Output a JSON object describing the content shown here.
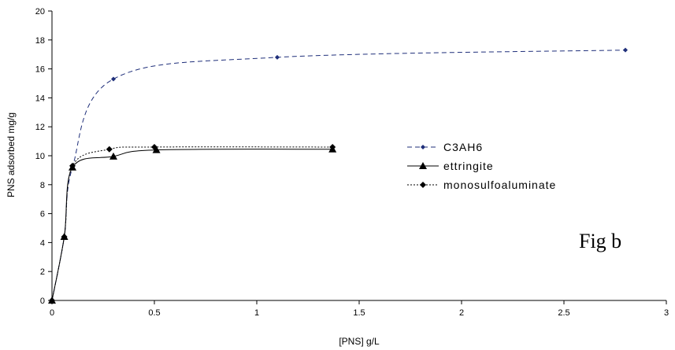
{
  "chart_data": {
    "type": "scatter",
    "title": "",
    "xlabel": "[PNS] g/L",
    "ylabel": "PNS adsorbed mg/g",
    "xlim": [
      0,
      3
    ],
    "ylim": [
      0,
      20
    ],
    "xticks": [
      0,
      0.5,
      1,
      1.5,
      2,
      2.5,
      3
    ],
    "xtick_labels": [
      "0",
      "0.5",
      "1",
      "1.5",
      "2",
      "2.5",
      "3"
    ],
    "yticks": [
      0,
      2,
      4,
      6,
      8,
      10,
      12,
      14,
      16,
      18,
      20
    ],
    "ytick_labels": [
      "0",
      "2",
      "4",
      "6",
      "8",
      "10",
      "12",
      "14",
      "16",
      "18",
      "20"
    ],
    "grid": false,
    "legend_position": "right",
    "series": [
      {
        "name": "C3AH6",
        "color": "#1f2f7a",
        "line": "dashed",
        "marker": "diamond-small",
        "points": [
          [
            0,
            0
          ],
          [
            0.06,
            4.4
          ],
          [
            0.1,
            9.2
          ],
          [
            0.3,
            15.3
          ],
          [
            1.1,
            16.8
          ],
          [
            2.8,
            17.3
          ]
        ]
      },
      {
        "name": "ettringite",
        "color": "#000000",
        "line": "solid",
        "marker": "triangle",
        "points": [
          [
            0,
            0
          ],
          [
            0.06,
            4.4
          ],
          [
            0.1,
            9.2
          ],
          [
            0.3,
            9.95
          ],
          [
            0.51,
            10.4
          ],
          [
            1.37,
            10.45
          ]
        ]
      },
      {
        "name": "monosulfoaluminate",
        "color": "#000000",
        "line": "dotted",
        "marker": "diamond",
        "points": [
          [
            0,
            0
          ],
          [
            0.06,
            4.4
          ],
          [
            0.1,
            9.3
          ],
          [
            0.28,
            10.45
          ],
          [
            0.5,
            10.6
          ],
          [
            1.37,
            10.6
          ]
        ]
      }
    ],
    "annotations": [
      "Fig b"
    ]
  }
}
